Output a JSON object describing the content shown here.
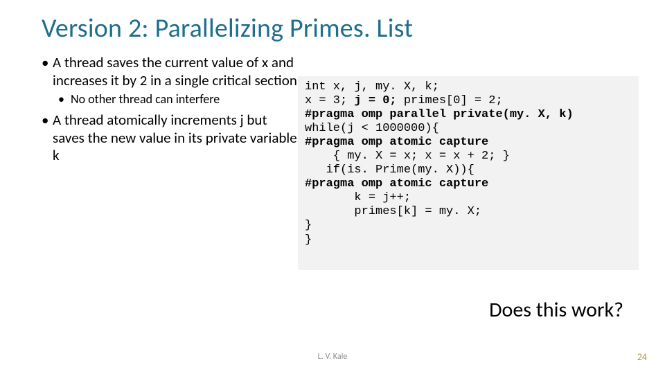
{
  "title": {
    "text": "Version 2: Parallelizing Primes. List",
    "color": "#1f6e8c",
    "fontsize": 38
  },
  "bullets": [
    {
      "text": "A thread saves the current value of x and increases it by 2 in a single critical section",
      "children": [
        {
          "text": "No other thread can interfere"
        }
      ]
    },
    {
      "text": "A thread atomically increments j but saves the new value in its private variable k",
      "children": []
    }
  ],
  "bullet_fontsize": 21,
  "sub_bullet_fontsize": 18,
  "code": {
    "background": "#f2f2f2",
    "font": "Courier New",
    "fontsize": 17,
    "plain_color": "#000000",
    "keyword_color": "#000000",
    "lines": [
      {
        "segs": [
          {
            "t": "int x, j, my. X, k;",
            "kw": false
          }
        ]
      },
      {
        "segs": [
          {
            "t": "x = 3; ",
            "kw": false
          },
          {
            "t": "j = 0;",
            "kw": true
          },
          {
            "t": " primes[0] = 2;",
            "kw": false
          }
        ]
      },
      {
        "segs": [
          {
            "t": "#pragma omp parallel private(my. X, k)",
            "kw": true
          }
        ]
      },
      {
        "segs": [
          {
            "t": "while(j < 1000000){",
            "kw": false
          }
        ]
      },
      {
        "segs": [
          {
            "t": "#pragma omp atomic capture",
            "kw": true
          }
        ]
      },
      {
        "segs": [
          {
            "t": "    { my. X = x; x = x + 2; }",
            "kw": false
          }
        ]
      },
      {
        "segs": [
          {
            "t": "   if(is. Prime(my. X)){",
            "kw": false
          }
        ]
      },
      {
        "segs": [
          {
            "t": "#pragma omp atomic capture",
            "kw": true
          }
        ]
      },
      {
        "segs": [
          {
            "t": "       k = j++;",
            "kw": false
          }
        ]
      },
      {
        "segs": [
          {
            "t": "       primes[k] = my. X;",
            "kw": false
          }
        ]
      },
      {
        "segs": [
          {
            "t": "}",
            "kw": false
          }
        ]
      },
      {
        "segs": [
          {
            "t": "}",
            "kw": false
          }
        ]
      }
    ]
  },
  "question": {
    "text": "Does this work?",
    "fontsize": 30
  },
  "footer": {
    "author": "L. V. Kale",
    "author_color": "#888888",
    "page": "24",
    "page_color": "#b28f4e"
  }
}
